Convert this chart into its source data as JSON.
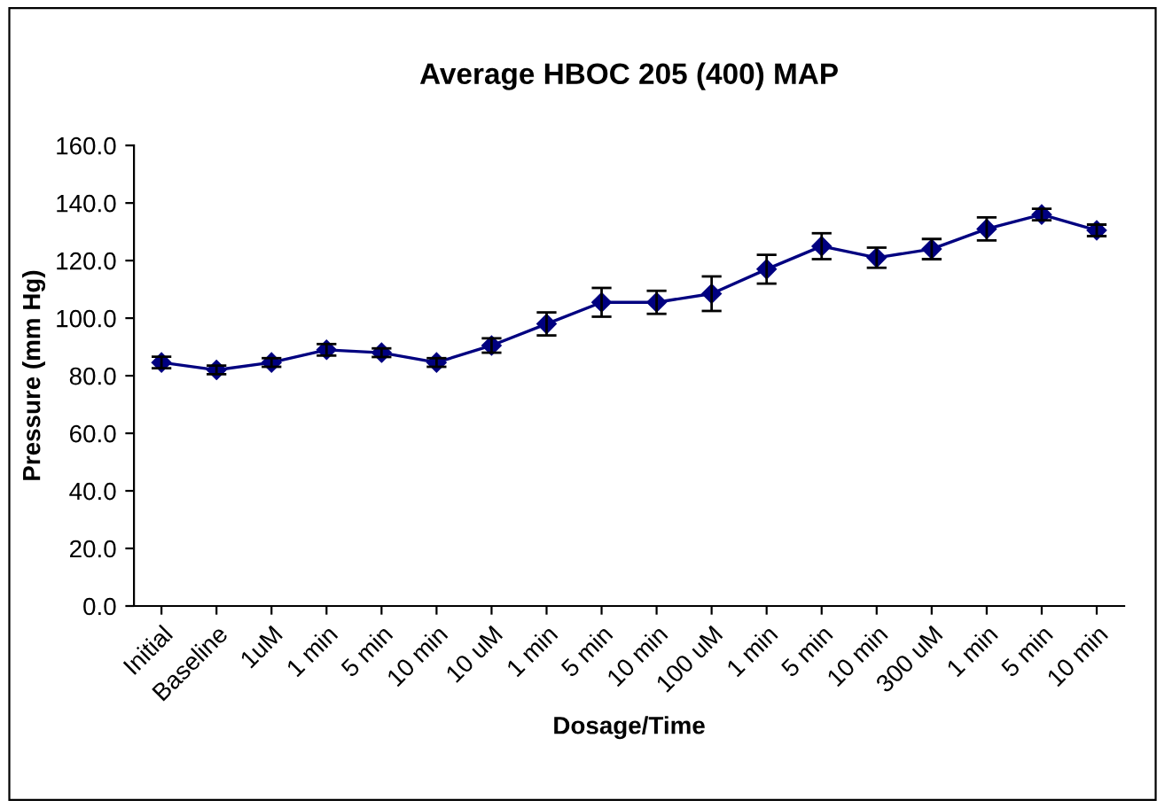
{
  "chart_data": {
    "type": "line",
    "title": "Average HBOC 205 (400) MAP",
    "xlabel": "Dosage/Time",
    "ylabel": "Pressure (mm Hg)",
    "categories": [
      "Initial",
      "Baseline",
      "1uM",
      "1 min",
      "5 min",
      "10 min",
      "10 uM",
      "1 min",
      "5 min",
      "10 min",
      "100 uM",
      "1 min",
      "5 min",
      "10 min",
      "300 uM",
      "1 min",
      "5 min",
      "10 min"
    ],
    "series": [
      {
        "color": "#000080",
        "values": [
          84.6,
          82,
          84.6,
          89,
          88,
          84.6,
          90.5,
          98,
          105.5,
          105.5,
          108.5,
          117,
          125,
          121,
          124,
          131,
          136,
          130.5
        ],
        "errors": [
          2,
          1.5,
          1.5,
          2,
          1.5,
          1.5,
          2.5,
          4,
          5,
          4,
          6,
          5,
          4.5,
          3.5,
          3.5,
          4,
          2,
          2
        ]
      }
    ],
    "ylim": [
      0,
      160
    ],
    "yticks": [
      {
        "value": 0,
        "label": "0.0"
      },
      {
        "value": 20,
        "label": "20.0"
      },
      {
        "value": 40,
        "label": "40.0"
      },
      {
        "value": 60,
        "label": "60.0"
      },
      {
        "value": 80,
        "label": "80.0"
      },
      {
        "value": 100,
        "label": "100.0"
      },
      {
        "value": 120,
        "label": "120.0"
      },
      {
        "value": 140,
        "label": "140.0"
      },
      {
        "value": 160,
        "label": "160.0"
      }
    ],
    "marker": "diamond",
    "line_style": "solid",
    "grid": false,
    "legend": false
  }
}
